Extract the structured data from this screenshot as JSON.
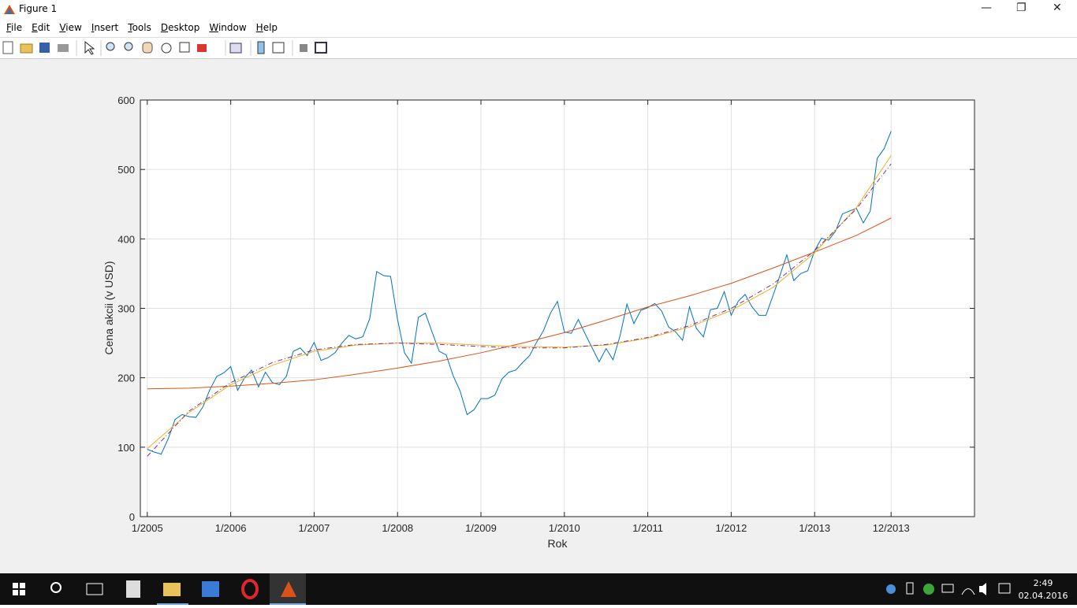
{
  "window": {
    "title": "Figure 1",
    "menu": [
      "File",
      "Edit",
      "View",
      "Insert",
      "Tools",
      "Desktop",
      "Window",
      "Help"
    ]
  },
  "chart_data": {
    "type": "line",
    "xlabel": "Rok",
    "ylabel": "Cena akcii (v USD)",
    "xlim": [
      0,
      120
    ],
    "ylim": [
      0,
      600
    ],
    "xticks": [
      {
        "value": 1,
        "label": "1/2005"
      },
      {
        "value": 13,
        "label": "1/2006"
      },
      {
        "value": 25,
        "label": "1/2007"
      },
      {
        "value": 37,
        "label": "1/2008"
      },
      {
        "value": 49,
        "label": "1/2009"
      },
      {
        "value": 61,
        "label": "1/2010"
      },
      {
        "value": 73,
        "label": "1/2011"
      },
      {
        "value": 85,
        "label": "1/2012"
      },
      {
        "value": 97,
        "label": "1/2013"
      },
      {
        "value": 108,
        "label": "12/2013"
      }
    ],
    "yticks": [
      0,
      100,
      200,
      300,
      400,
      500,
      600
    ],
    "grid": true,
    "series": [
      {
        "color": "#0072bd",
        "line_style": "solid",
        "x": [
          1,
          2,
          3,
          4,
          5,
          6,
          7,
          8,
          9,
          10,
          11,
          12,
          13,
          14,
          15,
          16,
          17,
          18,
          19,
          20,
          21,
          22,
          23,
          24,
          25,
          26,
          27,
          28,
          29,
          30,
          31,
          32,
          33,
          34,
          35,
          36,
          37,
          38,
          39,
          40,
          41,
          42,
          43,
          44,
          45,
          46,
          47,
          48,
          49,
          50,
          51,
          52,
          53,
          54,
          55,
          56,
          57,
          58,
          59,
          60,
          61,
          62,
          63,
          64,
          65,
          66,
          67,
          68,
          69,
          70,
          71,
          72,
          73,
          74,
          75,
          76,
          77,
          78,
          79,
          80,
          81,
          82,
          83,
          84,
          85,
          86,
          87,
          88,
          89,
          90,
          91,
          92,
          93,
          94,
          95,
          96,
          97,
          98,
          99,
          100,
          101,
          102,
          103,
          104,
          105,
          106,
          107,
          108
        ],
        "values": [
          97,
          93,
          90,
          112,
          140,
          147,
          144,
          143,
          158,
          183,
          202,
          207,
          216,
          182,
          200,
          211,
          187,
          208,
          193,
          190,
          202,
          238,
          243,
          232,
          251,
          225,
          229,
          236,
          250,
          261,
          256,
          259,
          285,
          353,
          347,
          346,
          284,
          236,
          221,
          287,
          293,
          265,
          238,
          233,
          203,
          181,
          147,
          154,
          170,
          170,
          175,
          198,
          208,
          211,
          222,
          232,
          251,
          268,
          293,
          310,
          266,
          264,
          284,
          263,
          243,
          223,
          242,
          226,
          260,
          306,
          278,
          297,
          301,
          307,
          296,
          273,
          266,
          254,
          302,
          271,
          259,
          298,
          300,
          324,
          290,
          310,
          320,
          302,
          290,
          290,
          318,
          347,
          377,
          340,
          350,
          354,
          383,
          401,
          398,
          411,
          436,
          440,
          444,
          423,
          440,
          516,
          530,
          555
        ]
      },
      {
        "color": "#d95319",
        "line_style": "solid",
        "x": [
          1,
          7,
          13,
          19,
          25,
          31,
          37,
          43,
          49,
          55,
          61,
          67,
          73,
          79,
          85,
          91,
          97,
          103,
          108
        ],
        "values": [
          184,
          185,
          188,
          192,
          197,
          205,
          214,
          224,
          236,
          250,
          265,
          283,
          302,
          318,
          336,
          358,
          381,
          405,
          430
        ]
      },
      {
        "color": "#edb120",
        "line_style": "solid",
        "x": [
          1,
          7,
          13,
          19,
          25,
          31,
          37,
          43,
          49,
          55,
          61,
          67,
          73,
          79,
          85,
          91,
          97,
          103,
          108
        ],
        "values": [
          98,
          150,
          190,
          218,
          238,
          247,
          250,
          250,
          247,
          245,
          244,
          247,
          257,
          273,
          297,
          330,
          380,
          445,
          520
        ]
      },
      {
        "color": "#7e2f8e",
        "line_style": "dashdot",
        "x": [
          1,
          7,
          13,
          19,
          25,
          31,
          37,
          43,
          49,
          55,
          61,
          67,
          73,
          79,
          85,
          91,
          97,
          103,
          108
        ],
        "values": [
          87,
          152,
          193,
          222,
          240,
          248,
          250,
          248,
          245,
          243,
          243,
          248,
          258,
          275,
          300,
          335,
          383,
          443,
          508
        ]
      }
    ]
  },
  "taskbar": {
    "time": "2:49",
    "date": "02.04.2016"
  }
}
